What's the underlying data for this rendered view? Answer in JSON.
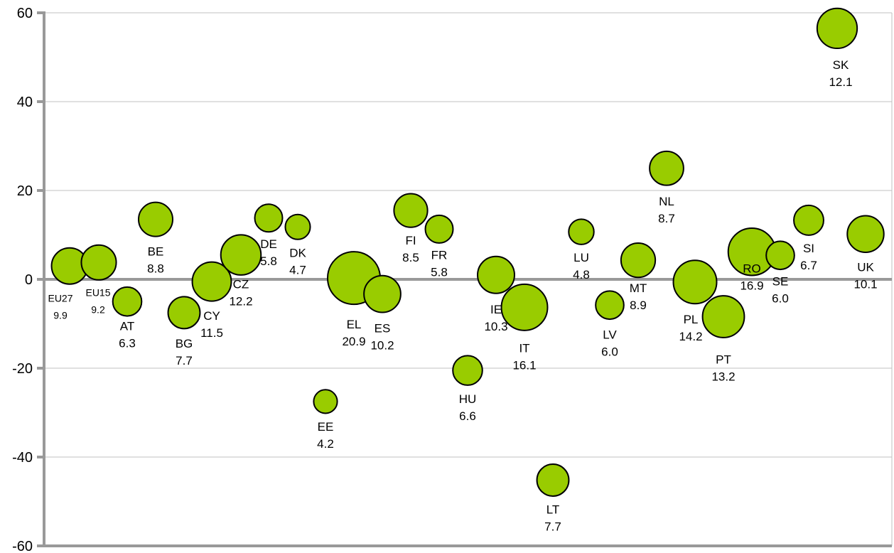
{
  "chart_data": {
    "type": "scatter",
    "variant": "bubble",
    "title": "",
    "xlabel": "",
    "ylabel": "",
    "ylim": [
      -60,
      60
    ],
    "y_ticks": [
      "60",
      "40",
      "20",
      "0",
      "-20",
      "-40",
      "-60"
    ],
    "grid": "horizontal",
    "legend": "none",
    "colors": {
      "bubble": "#99cc00",
      "bubble_stroke": "#000000",
      "axis": "#999999",
      "grid": "#c0c0c0"
    },
    "points": [
      {
        "code": "EU27",
        "y": 3,
        "size": 9.9,
        "value_label": "9.9"
      },
      {
        "code": "EU15",
        "y": 3.8,
        "size": 9.2,
        "value_label": "9.2"
      },
      {
        "code": "AT",
        "y": -5,
        "size": 6.3,
        "value_label": "6.3"
      },
      {
        "code": "BE",
        "y": 13.5,
        "size": 8.8,
        "value_label": "8.8"
      },
      {
        "code": "BG",
        "y": -7.5,
        "size": 7.7,
        "value_label": "7.7"
      },
      {
        "code": "CY",
        "y": -0.5,
        "size": 11.5,
        "value_label": "11.5"
      },
      {
        "code": "CZ",
        "y": 5.5,
        "size": 12.2,
        "value_label": "12.2"
      },
      {
        "code": "DE",
        "y": 13.8,
        "size": 5.8,
        "value_label": "5.8"
      },
      {
        "code": "DK",
        "y": 11.8,
        "size": 4.7,
        "value_label": "4.7"
      },
      {
        "code": "EE",
        "y": -27.5,
        "size": 4.2,
        "value_label": "4.2"
      },
      {
        "code": "EL",
        "y": 0.3,
        "size": 20.9,
        "value_label": "20.9"
      },
      {
        "code": "ES",
        "y": -3.3,
        "size": 10.2,
        "value_label": "10.2"
      },
      {
        "code": "FI",
        "y": 15.5,
        "size": 8.5,
        "value_label": "8.5"
      },
      {
        "code": "FR",
        "y": 11.3,
        "size": 5.8,
        "value_label": "5.8"
      },
      {
        "code": "HU",
        "y": -20.5,
        "size": 6.6,
        "value_label": "6.6"
      },
      {
        "code": "IE",
        "y": 1,
        "size": 10.3,
        "value_label": "10.3"
      },
      {
        "code": "IT",
        "y": -6.3,
        "size": 16.1,
        "value_label": "16.1"
      },
      {
        "code": "LT",
        "y": -45.2,
        "size": 7.7,
        "value_label": "7.7"
      },
      {
        "code": "LU",
        "y": 10.7,
        "size": 4.8,
        "value_label": "4.8"
      },
      {
        "code": "LV",
        "y": -5.8,
        "size": 6.0,
        "value_label": "6.0"
      },
      {
        "code": "MT",
        "y": 4.3,
        "size": 8.9,
        "value_label": "8.9"
      },
      {
        "code": "NL",
        "y": 25,
        "size": 8.7,
        "value_label": "8.7"
      },
      {
        "code": "PL",
        "y": -0.6,
        "size": 14.2,
        "value_label": "14.2"
      },
      {
        "code": "PT",
        "y": -8.4,
        "size": 13.2,
        "value_label": "13.2"
      },
      {
        "code": "RO",
        "y": 6.2,
        "size": 16.9,
        "value_label": "16.9"
      },
      {
        "code": "SE",
        "y": 5.4,
        "size": 6.0,
        "value_label": "6.0"
      },
      {
        "code": "SI",
        "y": 13.3,
        "size": 6.7,
        "value_label": "6.7"
      },
      {
        "code": "SK",
        "y": 56.5,
        "size": 12.1,
        "value_label": "12.1"
      },
      {
        "code": "UK",
        "y": 10.2,
        "size": 10.1,
        "value_label": "10.1"
      }
    ]
  }
}
